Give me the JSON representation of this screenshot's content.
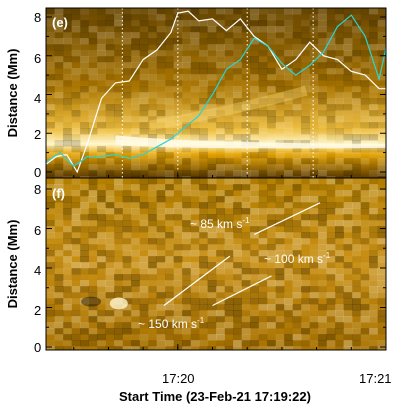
{
  "figure": {
    "panels": [
      {
        "label": "(e)"
      },
      {
        "label": "(f)"
      }
    ],
    "ylabel": "Distance (Mm)",
    "xlabel": "Start Time (23-Feb-21 17:19:22)",
    "yticks": [
      "0",
      "2",
      "4",
      "6",
      "8"
    ],
    "xticks": [
      "17:20",
      "17:21"
    ],
    "annotations": [
      {
        "text": "~ 85 km s",
        "sup": "-1"
      },
      {
        "text": "~ 100 km s",
        "sup": "-1"
      },
      {
        "text": "~ 150 km s",
        "sup": "-1"
      }
    ]
  },
  "chart_data": [
    {
      "type": "line",
      "panel": "(e)",
      "xlabel": "Start Time (23-Feb-21 17:19:22)",
      "ylabel": "Distance (Mm)",
      "xlim_s": [
        0,
        98
      ],
      "ylim": [
        0,
        8.3
      ],
      "vertical_dotted_lines_s": [
        22,
        38,
        58,
        77
      ],
      "series": [
        {
          "color": "#ffffff",
          "x": [
            0,
            3,
            6,
            9,
            12,
            16,
            20,
            24,
            28,
            32,
            36,
            38,
            41,
            44,
            48,
            52,
            56,
            60,
            64,
            68,
            72,
            76,
            80,
            84,
            88,
            92,
            96,
            98
          ],
          "y": [
            0.4,
            0.8,
            0.9,
            0.0,
            1.5,
            3.8,
            4.6,
            4.7,
            5.8,
            6.3,
            7.2,
            8.2,
            8.3,
            7.8,
            7.9,
            7.3,
            7.9,
            7.0,
            6.5,
            5.3,
            5.8,
            6.7,
            6.0,
            5.8,
            5.2,
            5.0,
            4.3,
            4.3
          ]
        },
        {
          "color": "#2ad4d4",
          "x": [
            0,
            4,
            8,
            12,
            16,
            20,
            24,
            28,
            32,
            36,
            40,
            44,
            48,
            52,
            56,
            60,
            64,
            68,
            72,
            76,
            80,
            84,
            88,
            92,
            96,
            98
          ],
          "y": [
            0.5,
            1.0,
            0.3,
            0.8,
            0.8,
            0.9,
            0.7,
            0.9,
            1.3,
            1.7,
            2.3,
            2.9,
            4.0,
            5.3,
            5.8,
            6.9,
            6.5,
            5.6,
            5.0,
            5.5,
            6.2,
            7.5,
            8.1,
            7.0,
            4.8,
            6.4
          ]
        }
      ]
    },
    {
      "type": "scatter",
      "panel": "(f)",
      "xlabel": "Start Time (23-Feb-21 17:19:22)",
      "ylabel": "Distance (Mm)",
      "xlim_s": [
        0,
        98
      ],
      "ylim": [
        0,
        8.3
      ],
      "fit_lines": [
        {
          "label": "~ 85 km s-1",
          "x": [
            60,
            79
          ],
          "y": [
            5.7,
            7.3
          ]
        },
        {
          "label": "~ 100 km s-1",
          "x": [
            48,
            65
          ],
          "y": [
            2.1,
            3.6
          ]
        },
        {
          "label": "~ 150 km s-1",
          "x": [
            34,
            53
          ],
          "y": [
            2.1,
            4.6
          ]
        }
      ]
    }
  ]
}
